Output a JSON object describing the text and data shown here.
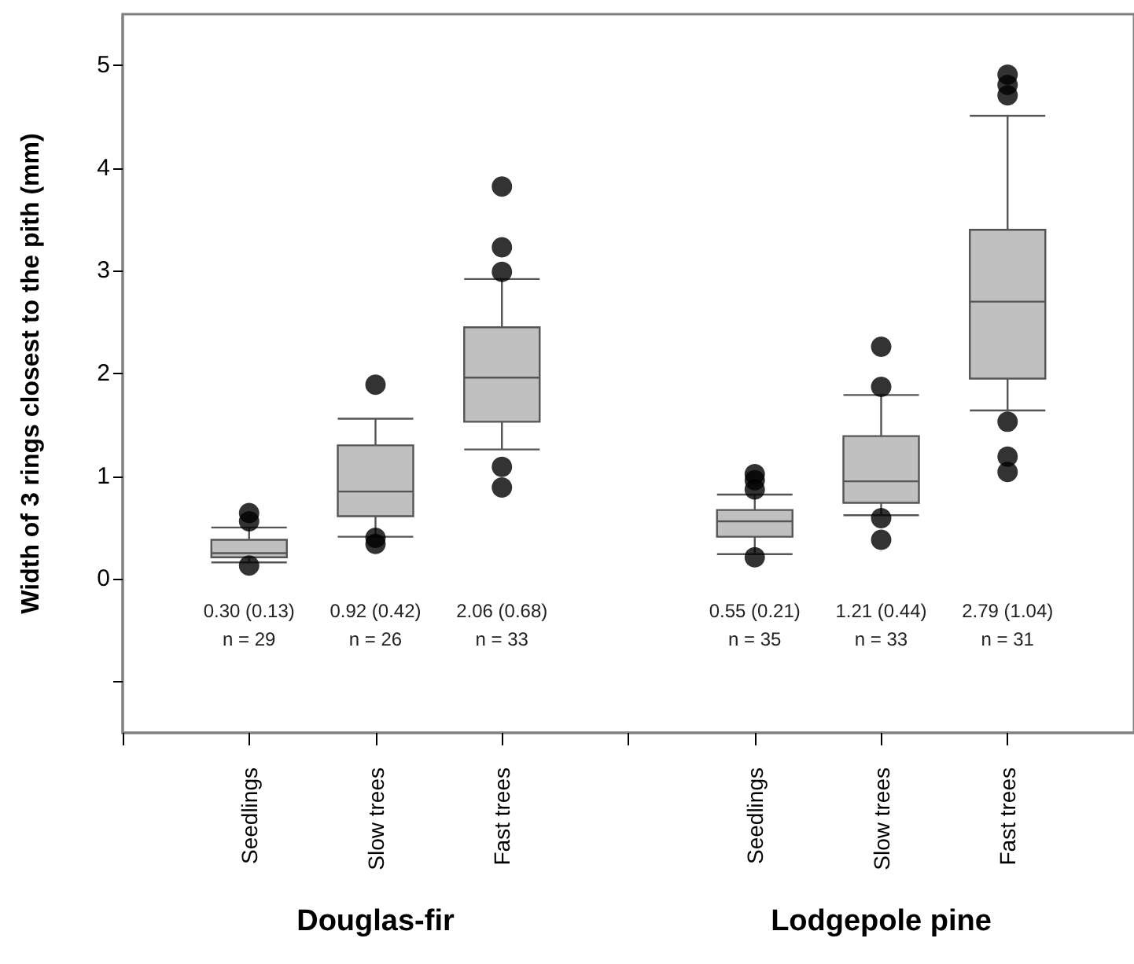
{
  "chart_data": {
    "type": "box",
    "ylabel": "Width of 3 rings closest to the pith (mm)",
    "categories": [
      null,
      "Seedlings",
      "Slow trees",
      "Fast trees",
      null,
      "Seedlings",
      "Slow trees",
      "Fast trees",
      null
    ],
    "color": "#c0c0c0",
    "boxes": [
      null,
      {
        "low": 0.16,
        "q1": 0.21,
        "median": 0.25,
        "q3": 0.38,
        "high": 0.5,
        "outliers": [
          0.64,
          0.56,
          0.13
        ]
      },
      {
        "low": 0.41,
        "q1": 0.61,
        "median": 0.85,
        "q3": 1.3,
        "high": 1.56,
        "outliers": [
          1.89,
          0.4,
          0.34
        ]
      },
      {
        "low": 1.26,
        "q1": 1.53,
        "median": 1.96,
        "q3": 2.45,
        "high": 2.92,
        "outliers": [
          3.82,
          3.23,
          2.99,
          1.09,
          0.89
        ]
      },
      null,
      {
        "low": 0.24,
        "q1": 0.41,
        "median": 0.56,
        "q3": 0.67,
        "high": 0.82,
        "outliers": [
          1.02,
          0.96,
          0.87,
          0.21
        ]
      },
      {
        "low": 0.62,
        "q1": 0.74,
        "median": 0.95,
        "q3": 1.39,
        "high": 1.79,
        "outliers": [
          2.26,
          1.87,
          0.59,
          0.38
        ]
      },
      {
        "low": 1.64,
        "q1": 1.95,
        "median": 2.7,
        "q3": 3.4,
        "high": 4.51,
        "outliers": [
          4.91,
          4.81,
          4.71,
          1.53,
          1.19,
          1.04
        ]
      },
      null
    ],
    "ylim": [
      -1.5,
      5.5
    ],
    "yticks": [
      {
        "value": -1,
        "label": null
      },
      0,
      1,
      2,
      3,
      4,
      5
    ],
    "annotations": [
      "0.30 (0.13)\nn = 29",
      "0.92 (0.42)\nn = 26",
      "2.06 (0.68)\nn = 33",
      "0.55 (0.21)\nn = 35",
      "1.21 (0.44)\nn = 33",
      "2.79 (1.04)\nn = 31",
      "Douglas-fir",
      "Lodgepole pine"
    ],
    "grid": false
  }
}
